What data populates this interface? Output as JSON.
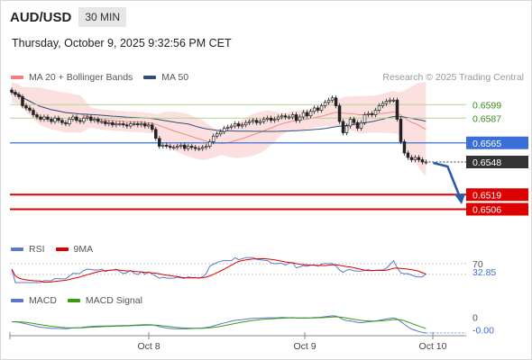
{
  "header": {
    "symbol": "AUD/USD",
    "timeframe": "30 MIN"
  },
  "datetime": "Thursday, October 9, 2025 9:32:56 PM CET",
  "credit": "Research © 2025 Trading Central",
  "legends": {
    "main": [
      {
        "label": "MA 20 + Bollinger Bands",
        "color": "#f08080"
      },
      {
        "label": "MA 50",
        "color": "#2e4d7e"
      }
    ],
    "rsi": [
      {
        "label": "RSI",
        "color": "#5b78c9"
      },
      {
        "label": "9MA",
        "color": "#dd0000"
      }
    ],
    "macd": [
      {
        "label": "MACD",
        "color": "#5b78c9"
      },
      {
        "label": "MACD Signal",
        "color": "#3a9a10"
      }
    ]
  },
  "colors": {
    "resistance": "#b5d48f",
    "pivot": "#3a6fd8",
    "support": "#dd0000",
    "bollinger_fill": "#fbd6d6",
    "bollinger_line": "#f08080",
    "ma50": "#2e4d7e",
    "candle": "#222222",
    "arrow": "#2a5da8"
  },
  "chart_data": {
    "type": "candlestick",
    "ylim": [
      0.6484,
      0.6612
    ],
    "x_labels": [
      "Oct 8",
      "Oct 9",
      "Oct 10"
    ],
    "levels": [
      {
        "value": 0.6599,
        "label": "0.6599",
        "kind": "resistance"
      },
      {
        "value": 0.6587,
        "label": "0.6587",
        "kind": "resistance"
      },
      {
        "value": 0.6565,
        "label": "0.6565",
        "kind": "pivot"
      },
      {
        "value": 0.6548,
        "label": "0.6548",
        "kind": "last_price"
      },
      {
        "value": 0.6519,
        "label": "0.6519",
        "kind": "support"
      },
      {
        "value": 0.6506,
        "label": "0.6506",
        "kind": "support"
      }
    ],
    "close": [
      0.661,
      0.6608,
      0.6606,
      0.6598,
      0.6596,
      0.6594,
      0.659,
      0.6588,
      0.6586,
      0.6588,
      0.6586,
      0.6584,
      0.6587,
      0.6585,
      0.6583,
      0.6582,
      0.6586,
      0.6588,
      0.6585,
      0.6584,
      0.6587,
      0.6588,
      0.6585,
      0.6586,
      0.6584,
      0.6584,
      0.6582,
      0.6583,
      0.6581,
      0.6582,
      0.6582,
      0.6581,
      0.658,
      0.6582,
      0.6582,
      0.6581,
      0.6582,
      0.658,
      0.6581,
      0.6577,
      0.6569,
      0.6562,
      0.6563,
      0.6562,
      0.6561,
      0.6561,
      0.6562,
      0.6563,
      0.656,
      0.6562,
      0.6561,
      0.656,
      0.656,
      0.6561,
      0.6562,
      0.6566,
      0.6571,
      0.6573,
      0.6575,
      0.6578,
      0.6579,
      0.658,
      0.6582,
      0.658,
      0.6581,
      0.6583,
      0.6584,
      0.6585,
      0.6583,
      0.6584,
      0.6586,
      0.6587,
      0.6585,
      0.6586,
      0.6588,
      0.6589,
      0.6588,
      0.6588,
      0.659,
      0.6585,
      0.6588,
      0.6592,
      0.6589,
      0.6593,
      0.6596,
      0.6594,
      0.6598,
      0.6601,
      0.6603,
      0.6605,
      0.6598,
      0.6584,
      0.6574,
      0.658,
      0.6586,
      0.6583,
      0.6578,
      0.6583,
      0.659,
      0.6591,
      0.659,
      0.6594,
      0.6598,
      0.66,
      0.6602,
      0.6603,
      0.6603,
      0.6586,
      0.6566,
      0.6556,
      0.6552,
      0.655,
      0.6552,
      0.655,
      0.6548,
      0.6548
    ],
    "rsi": {
      "levels": [
        70,
        30
      ],
      "last": 32.85,
      "last_label": "32.85",
      "level_label": "70"
    },
    "macd": {
      "zero_label": "0",
      "last": -0.0001,
      "last_label": "-0.00"
    }
  }
}
